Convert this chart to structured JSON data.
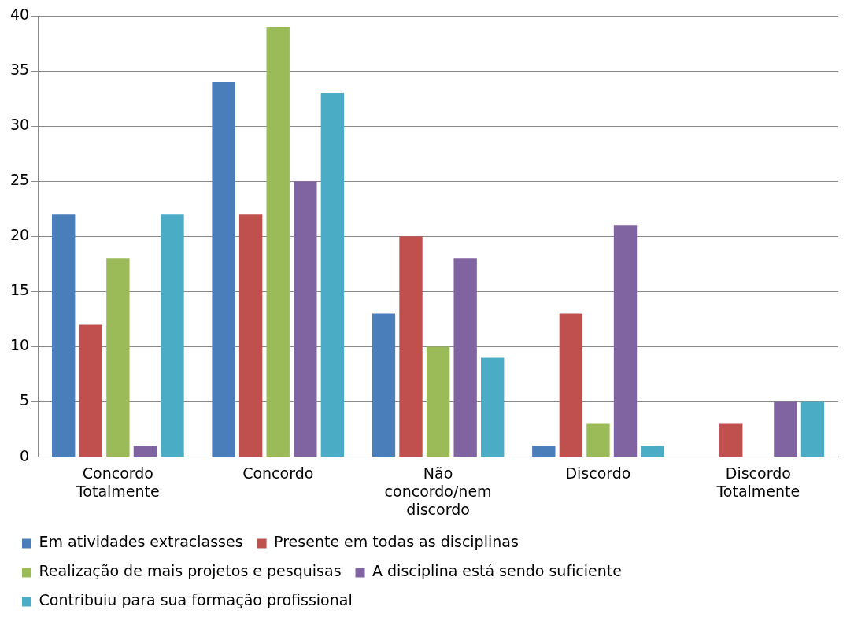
{
  "chart_data": {
    "type": "bar",
    "categories": [
      "Concordo Totalmente",
      "Concordo",
      "Não concordo/nem discordo",
      "Discordo",
      "Discordo Totalmente"
    ],
    "series": [
      {
        "name": "Em atividades extraclasses",
        "color": "#4a7ebb",
        "values": [
          22,
          34,
          13,
          1,
          0
        ]
      },
      {
        "name": "Presente em todas as disciplinas",
        "color": "#c0504d",
        "values": [
          12,
          22,
          20,
          13,
          3
        ]
      },
      {
        "name": "Realização de mais projetos e pesquisas",
        "color": "#9bbb59",
        "values": [
          18,
          39,
          10,
          3,
          0
        ]
      },
      {
        "name": "A disciplina está sendo suficiente",
        "color": "#8064a2",
        "values": [
          1,
          25,
          18,
          21,
          5
        ]
      },
      {
        "name": "Contribuiu para sua formação profissional",
        "color": "#4bacc6",
        "values": [
          22,
          33,
          9,
          1,
          5
        ]
      }
    ],
    "ylim": [
      0,
      40
    ],
    "yticks": [
      0,
      5,
      10,
      15,
      20,
      25,
      30,
      35,
      40
    ],
    "grid": "y",
    "legend": "bottom"
  }
}
